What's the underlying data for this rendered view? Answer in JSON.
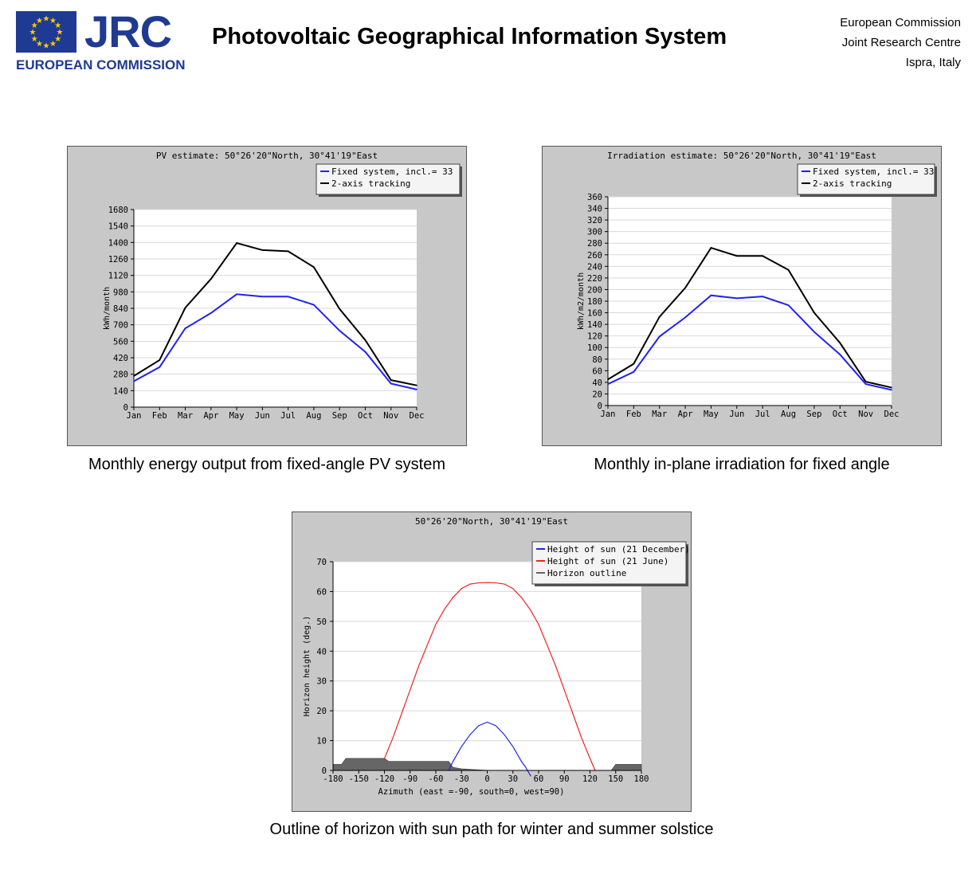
{
  "header": {
    "logo_text": "JRC",
    "logo_subtitle": "EUROPEAN COMMISSION",
    "title": "Photovoltaic Geographical Information System",
    "org_lines": [
      "European Commission",
      "Joint Research Centre",
      "Ispra, Italy"
    ]
  },
  "colors": {
    "panel_bg": "#c8c8c8",
    "plot_bg": "#ffffff",
    "grid": "#d8d8d8",
    "fixed_line": "#2222ee",
    "tracking_line": "#000000",
    "winter_line": "#2222ee",
    "summer_line": "#ee2222",
    "horizon_fill": "#666666"
  },
  "captions": {
    "energy": "Monthly energy output from fixed-angle PV system",
    "irradiation": "Monthly in-plane irradiation for fixed angle",
    "horizon": "Outline of horizon with sun path for winter and summer solstice"
  },
  "chart_data": [
    {
      "type": "line",
      "title": "PV estimate:  50°26'20\"North, 30°41'19\"East",
      "ylabel": "kWh/month",
      "xlabel": "",
      "categories": [
        "Jan",
        "Feb",
        "Mar",
        "Apr",
        "May",
        "Jun",
        "Jul",
        "Aug",
        "Sep",
        "Oct",
        "Nov",
        "Dec"
      ],
      "yticks": [
        0,
        140,
        280,
        420,
        560,
        700,
        840,
        980,
        1120,
        1260,
        1400,
        1540,
        1680
      ],
      "ylim": [
        0,
        1680
      ],
      "legend_position": "top-right",
      "grid": true,
      "series": [
        {
          "name": "Fixed system, incl.=  33",
          "color": "#2222ee",
          "values": [
            220,
            340,
            670,
            800,
            960,
            940,
            940,
            870,
            650,
            470,
            200,
            150
          ]
        },
        {
          "name": "2-axis tracking",
          "color": "#000000",
          "values": [
            265,
            400,
            845,
            1090,
            1395,
            1335,
            1325,
            1190,
            835,
            570,
            230,
            185
          ]
        }
      ]
    },
    {
      "type": "line",
      "title": "Irradiation estimate:  50°26'20\"North, 30°41'19\"East",
      "ylabel": "kWh/m2/month",
      "xlabel": "",
      "categories": [
        "Jan",
        "Feb",
        "Mar",
        "Apr",
        "May",
        "Jun",
        "Jul",
        "Aug",
        "Sep",
        "Oct",
        "Nov",
        "Dec"
      ],
      "yticks": [
        0,
        20,
        40,
        60,
        80,
        100,
        120,
        140,
        160,
        180,
        200,
        220,
        240,
        260,
        280,
        300,
        320,
        340,
        360
      ],
      "ylim": [
        0,
        360
      ],
      "legend_position": "top-right",
      "grid": true,
      "series": [
        {
          "name": "Fixed system, incl.= 33",
          "color": "#2222ee",
          "values": [
            37,
            58,
            119,
            152,
            190,
            185,
            188,
            173,
            127,
            88,
            37,
            27
          ]
        },
        {
          "name": "2-axis tracking",
          "color": "#000000",
          "values": [
            45,
            72,
            153,
            203,
            272,
            258,
            258,
            234,
            160,
            108,
            41,
            31
          ]
        }
      ]
    },
    {
      "type": "line",
      "title": "50°26'20\"North, 30°41'19\"East",
      "ylabel": "Horizon height (deg.)",
      "xlabel": "Azimuth (east =-90, south=0, west=90)",
      "xticks": [
        -180,
        -150,
        -120,
        -90,
        -60,
        -30,
        0,
        30,
        60,
        90,
        120,
        150,
        180
      ],
      "xtick_labels": [
        "-180",
        "-150",
        "-120",
        "-90",
        "-60",
        "-30",
        "0",
        "30",
        "60",
        "90",
        "120",
        "150",
        "180"
      ],
      "yticks": [
        0,
        10,
        20,
        30,
        40,
        50,
        60,
        70
      ],
      "xlim": [
        -180,
        180
      ],
      "ylim": [
        0,
        70
      ],
      "legend_position": "top-right",
      "grid": true,
      "series": [
        {
          "name": "Height of sun (21 December)",
          "color": "#2222ee",
          "x": [
            -45,
            -40,
            -30,
            -20,
            -10,
            0,
            10,
            20,
            30,
            40,
            45,
            51
          ],
          "y": [
            0,
            3,
            8,
            12,
            15,
            16.2,
            15,
            12,
            8,
            3,
            1,
            -2
          ]
        },
        {
          "name": "Height of sun (21 June)",
          "color": "#ee2222",
          "x": [
            -120,
            -110,
            -100,
            -90,
            -80,
            -70,
            -60,
            -50,
            -40,
            -30,
            -20,
            -10,
            0,
            10,
            20,
            30,
            40,
            50,
            60,
            70,
            80,
            90,
            100,
            110,
            120,
            126
          ],
          "y": [
            4,
            11,
            19,
            27,
            35,
            42,
            49,
            54,
            58,
            61,
            62.5,
            62.9,
            63,
            62.9,
            62.5,
            61,
            58,
            54,
            49,
            42,
            35,
            27,
            19,
            11,
            4,
            0
          ]
        },
        {
          "name": "Horizon outline",
          "color": "#666666",
          "x": [
            -180,
            -170,
            -165,
            -160,
            -150,
            -125,
            -120,
            -115,
            -45,
            -40,
            -30,
            0,
            130,
            140,
            145,
            150,
            160,
            170,
            180
          ],
          "y": [
            2,
            2,
            4,
            4,
            4,
            4,
            4,
            3,
            3,
            1,
            0.5,
            0,
            0,
            0,
            0,
            2,
            2,
            2,
            2
          ]
        }
      ]
    }
  ]
}
